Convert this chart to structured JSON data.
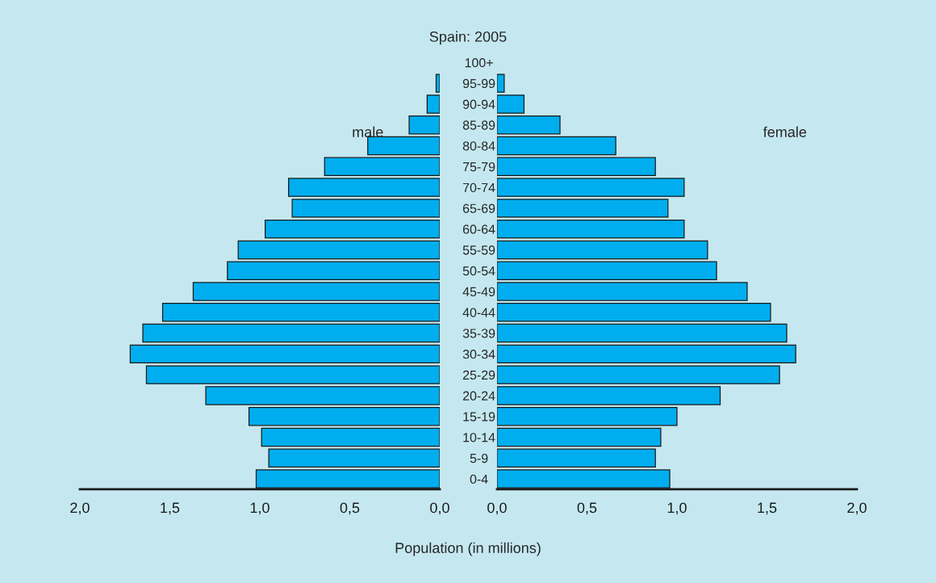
{
  "chart_data": [
    {
      "type": "bar",
      "orientation": "horizontal",
      "title": "Spain: 2005",
      "categories": [
        "100+",
        "95-99",
        "90-94",
        "85-89",
        "80-84",
        "75-79",
        "70-74",
        "65-69",
        "60-64",
        "55-59",
        "50-54",
        "45-49",
        "40-44",
        "35-39",
        "30-34",
        "25-29",
        "20-24",
        "15-19",
        "10-14",
        "5-9",
        "0-4"
      ],
      "series": [
        {
          "name": "male",
          "color": "#00aeef",
          "values": [
            null,
            0.02,
            0.07,
            0.17,
            0.4,
            0.64,
            0.84,
            0.82,
            0.97,
            1.12,
            1.18,
            1.37,
            1.54,
            1.65,
            1.72,
            1.63,
            1.3,
            1.06,
            0.99,
            0.95,
            1.02
          ]
        }
      ],
      "xlim": [
        2.0,
        0.0
      ],
      "xticks": [
        {
          "value": 2.0,
          "label": "2,0"
        },
        {
          "value": 1.5,
          "label": "1,5"
        },
        {
          "value": 1.0,
          "label": "1,0"
        },
        {
          "value": 0.5,
          "label": "0,5"
        },
        {
          "value": 0.0,
          "label": "0,0"
        }
      ],
      "grid": false
    },
    {
      "type": "bar",
      "orientation": "horizontal",
      "xlabel": "Population (in millions)",
      "categories": [
        null,
        null,
        null,
        null,
        null,
        null,
        null,
        null,
        null,
        null,
        null,
        null,
        null,
        null,
        null,
        null,
        null,
        null,
        null,
        null,
        null
      ],
      "series": [
        {
          "name": "female",
          "color": "#00aeef",
          "values": [
            null,
            0.04,
            0.15,
            0.35,
            0.66,
            0.88,
            1.04,
            0.95,
            1.04,
            1.17,
            1.22,
            1.39,
            1.52,
            1.61,
            1.66,
            1.57,
            1.24,
            1.0,
            0.91,
            0.88,
            0.96
          ]
        }
      ],
      "xlim": [
        0.0,
        2.0
      ],
      "xticks": [
        {
          "value": 0.0,
          "label": "0,0"
        },
        {
          "value": 0.5,
          "label": "0,5"
        },
        {
          "value": 1.0,
          "label": "1,0"
        },
        {
          "value": 1.5,
          "label": "1,5"
        },
        {
          "value": 2.0,
          "label": "2,0"
        }
      ],
      "tick_labels": "x",
      "grid": false
    }
  ]
}
